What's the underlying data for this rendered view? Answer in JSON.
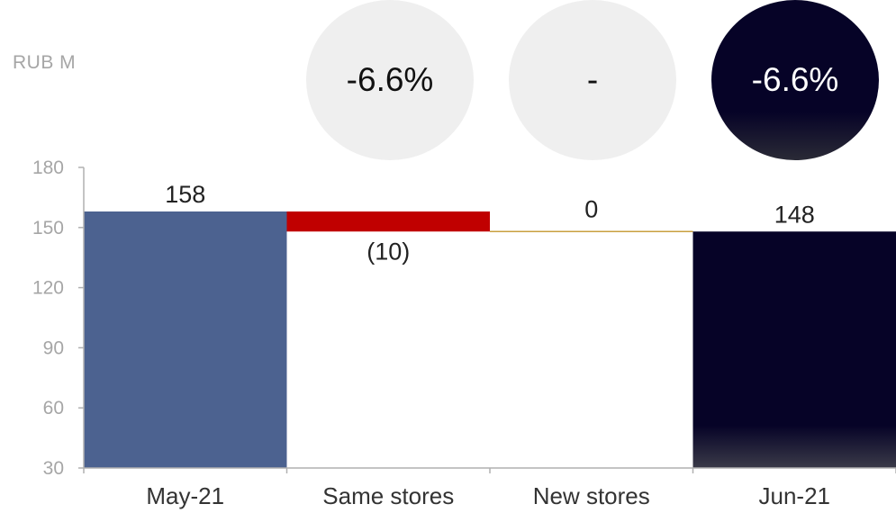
{
  "unit_label": "RUB M",
  "bubbles": [
    {
      "text": "-6.6%",
      "style": "light"
    },
    {
      "text": "-",
      "style": "light"
    },
    {
      "text": "-6.6%",
      "style": "dark"
    }
  ],
  "colors": {
    "start_bar": "#4c6290",
    "decrease_bar": "#c00000",
    "zero_line": "#c9a040",
    "end_bar": "#060327",
    "axis": "#b0b0b0"
  },
  "chart_data": {
    "type": "bar",
    "subtype": "waterfall",
    "categories": [
      "May-21",
      "Same stores",
      "New stores",
      "Jun-21"
    ],
    "values": [
      158,
      -10,
      0,
      148
    ],
    "kinds": [
      "total",
      "delta",
      "delta",
      "total"
    ],
    "data_labels": [
      "158",
      "(10)",
      "0",
      "148"
    ],
    "yticks": [
      "180",
      "150",
      "120",
      "90",
      "60",
      "30"
    ],
    "ylim": [
      30,
      180
    ],
    "title": "",
    "xlabel": "",
    "ylabel": "RUB M",
    "grid": false,
    "legend": "none"
  }
}
